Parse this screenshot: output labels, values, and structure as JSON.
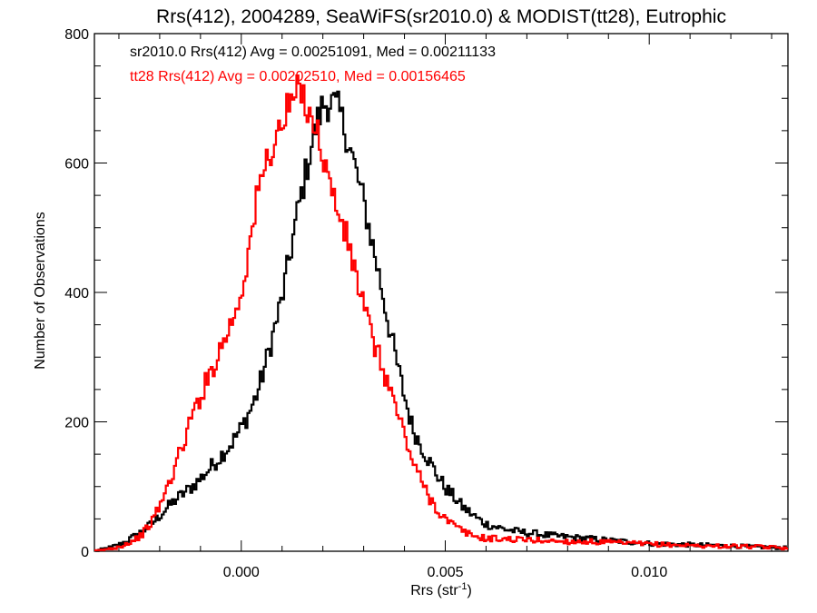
{
  "chart_data": {
    "type": "line",
    "style": "histogram-step",
    "title": "Rrs(412), 2004289, SeaWiFS(sr2010.0) & MODIST(tt28), Eutrophic",
    "xlabel": "Rrs (str",
    "xlabel_sup": "-1",
    "xlabel_end": ")",
    "ylabel": "Number of Observations",
    "xlim": [
      -0.0036,
      0.0134
    ],
    "ylim": [
      0,
      800
    ],
    "x_ticks": [
      {
        "value": 0.0,
        "label": "0.000"
      },
      {
        "value": 0.005,
        "label": "0.005"
      },
      {
        "value": 0.01,
        "label": "0.010"
      }
    ],
    "y_ticks": [
      {
        "value": 0,
        "label": "0"
      },
      {
        "value": 200,
        "label": "200"
      },
      {
        "value": 400,
        "label": "400"
      },
      {
        "value": 600,
        "label": "600"
      },
      {
        "value": 800,
        "label": "800"
      }
    ],
    "grid": false,
    "annotations": [
      {
        "text": "sr2010.0 Rrs(412) Avg = 0.00251091, Med = 0.00211133",
        "color": "#000000",
        "series": 0
      },
      {
        "text": "tt28 Rrs(412) Avg = 0.00202510, Med = 0.00156465",
        "color": "#ff0000",
        "series": 1
      }
    ],
    "series": [
      {
        "color": "#000000",
        "points": [
          [
            -0.0036,
            0
          ],
          [
            -0.0034,
            3
          ],
          [
            -0.0032,
            6
          ],
          [
            -0.003,
            10
          ],
          [
            -0.0028,
            16
          ],
          [
            -0.0026,
            24
          ],
          [
            -0.0024,
            32
          ],
          [
            -0.0022,
            42
          ],
          [
            -0.002,
            55
          ],
          [
            -0.0018,
            68
          ],
          [
            -0.0016,
            80
          ],
          [
            -0.0014,
            90
          ],
          [
            -0.0012,
            100
          ],
          [
            -0.001,
            112
          ],
          [
            -0.0008,
            126
          ],
          [
            -0.0006,
            140
          ],
          [
            -0.0004,
            155
          ],
          [
            -0.0002,
            170
          ],
          [
            0.0,
            190
          ],
          [
            0.0002,
            215
          ],
          [
            0.0004,
            245
          ],
          [
            0.0006,
            290
          ],
          [
            0.0008,
            340
          ],
          [
            0.001,
            390
          ],
          [
            0.0012,
            460
          ],
          [
            0.0014,
            530
          ],
          [
            0.0016,
            590
          ],
          [
            0.0018,
            650
          ],
          [
            0.002,
            690
          ],
          [
            0.0022,
            695
          ],
          [
            0.0024,
            680
          ],
          [
            0.0026,
            640
          ],
          [
            0.0028,
            590
          ],
          [
            0.003,
            540
          ],
          [
            0.0032,
            480
          ],
          [
            0.0034,
            420
          ],
          [
            0.0036,
            355
          ],
          [
            0.0038,
            295
          ],
          [
            0.004,
            240
          ],
          [
            0.0042,
            190
          ],
          [
            0.0044,
            165
          ],
          [
            0.0046,
            140
          ],
          [
            0.0048,
            118
          ],
          [
            0.005,
            98
          ],
          [
            0.0052,
            85
          ],
          [
            0.0054,
            70
          ],
          [
            0.0056,
            60
          ],
          [
            0.0058,
            50
          ],
          [
            0.006,
            42
          ],
          [
            0.0064,
            35
          ],
          [
            0.0068,
            30
          ],
          [
            0.0072,
            27
          ],
          [
            0.0076,
            24
          ],
          [
            0.008,
            22
          ],
          [
            0.0084,
            20
          ],
          [
            0.0088,
            18
          ],
          [
            0.0092,
            16
          ],
          [
            0.0096,
            14
          ],
          [
            0.01,
            12
          ],
          [
            0.0105,
            11
          ],
          [
            0.011,
            10
          ],
          [
            0.0115,
            9
          ],
          [
            0.012,
            8
          ],
          [
            0.0125,
            7
          ],
          [
            0.013,
            6
          ],
          [
            0.0134,
            5
          ]
        ]
      },
      {
        "color": "#ff0000",
        "points": [
          [
            -0.0036,
            0
          ],
          [
            -0.0034,
            2
          ],
          [
            -0.0032,
            4
          ],
          [
            -0.003,
            7
          ],
          [
            -0.0028,
            12
          ],
          [
            -0.0026,
            18
          ],
          [
            -0.0024,
            28
          ],
          [
            -0.0022,
            45
          ],
          [
            -0.002,
            70
          ],
          [
            -0.0018,
            100
          ],
          [
            -0.0016,
            135
          ],
          [
            -0.0014,
            170
          ],
          [
            -0.0012,
            210
          ],
          [
            -0.001,
            240
          ],
          [
            -0.0008,
            270
          ],
          [
            -0.0006,
            300
          ],
          [
            -0.0004,
            330
          ],
          [
            -0.0002,
            360
          ],
          [
            0.0,
            400
          ],
          [
            0.0002,
            470
          ],
          [
            0.0004,
            550
          ],
          [
            0.0006,
            600
          ],
          [
            0.0008,
            630
          ],
          [
            0.001,
            660
          ],
          [
            0.0012,
            690
          ],
          [
            0.0014,
            710
          ],
          [
            0.0016,
            695
          ],
          [
            0.0018,
            660
          ],
          [
            0.002,
            615
          ],
          [
            0.0022,
            560
          ],
          [
            0.0024,
            520
          ],
          [
            0.0026,
            480
          ],
          [
            0.0028,
            430
          ],
          [
            0.003,
            380
          ],
          [
            0.0032,
            330
          ],
          [
            0.0034,
            295
          ],
          [
            0.0036,
            260
          ],
          [
            0.0038,
            220
          ],
          [
            0.004,
            180
          ],
          [
            0.0042,
            140
          ],
          [
            0.0044,
            110
          ],
          [
            0.0046,
            85
          ],
          [
            0.0048,
            65
          ],
          [
            0.005,
            50
          ],
          [
            0.0052,
            40
          ],
          [
            0.0054,
            32
          ],
          [
            0.0056,
            26
          ],
          [
            0.0058,
            22
          ],
          [
            0.006,
            20
          ],
          [
            0.0064,
            19
          ],
          [
            0.0068,
            18
          ],
          [
            0.0072,
            17
          ],
          [
            0.0076,
            16
          ],
          [
            0.008,
            15
          ],
          [
            0.0084,
            15
          ],
          [
            0.0088,
            14
          ],
          [
            0.0092,
            13
          ],
          [
            0.0096,
            12
          ],
          [
            0.01,
            11
          ],
          [
            0.0105,
            10
          ],
          [
            0.011,
            9
          ],
          [
            0.0115,
            8
          ],
          [
            0.012,
            8
          ],
          [
            0.0125,
            7
          ],
          [
            0.013,
            6
          ],
          [
            0.0134,
            5
          ]
        ]
      }
    ]
  }
}
